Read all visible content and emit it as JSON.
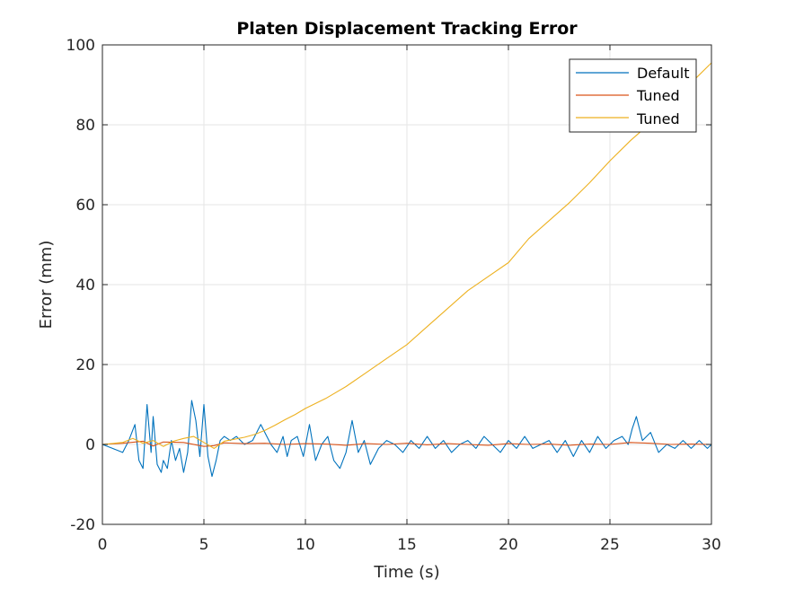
{
  "chart_data": {
    "type": "line",
    "title": "Platen Displacement Tracking Error",
    "xlabel": "Time (s)",
    "ylabel": "Error (mm)",
    "xlim": [
      0,
      30
    ],
    "ylim": [
      -20,
      100
    ],
    "xticks": [
      "0",
      "5",
      "10",
      "15",
      "20",
      "25",
      "30"
    ],
    "yticks": [
      "-20",
      "0",
      "20",
      "40",
      "60",
      "80",
      "100"
    ],
    "grid": true,
    "legend_position": "top-right",
    "series": [
      {
        "name": "Default",
        "color": "#0072BD",
        "x": [
          0,
          0.5,
          1,
          1.3,
          1.6,
          1.8,
          2.0,
          2.2,
          2.4,
          2.5,
          2.7,
          2.9,
          3.0,
          3.2,
          3.4,
          3.6,
          3.8,
          4.0,
          4.2,
          4.4,
          4.6,
          4.8,
          5.0,
          5.2,
          5.4,
          5.6,
          5.8,
          6.0,
          6.3,
          6.6,
          7.0,
          7.4,
          7.8,
          8.0,
          8.3,
          8.6,
          8.9,
          9.1,
          9.3,
          9.6,
          9.9,
          10.2,
          10.5,
          10.8,
          11.1,
          11.4,
          11.7,
          12.0,
          12.3,
          12.6,
          12.9,
          13.2,
          13.6,
          14.0,
          14.4,
          14.8,
          15.2,
          15.6,
          16.0,
          16.4,
          16.8,
          17.2,
          17.6,
          18.0,
          18.4,
          18.8,
          19.2,
          19.6,
          20.0,
          20.4,
          20.8,
          21.2,
          21.6,
          22.0,
          22.4,
          22.8,
          23.2,
          23.6,
          24.0,
          24.4,
          24.8,
          25.2,
          25.6,
          25.9,
          26.1,
          26.3,
          26.6,
          27.0,
          27.4,
          27.8,
          28.2,
          28.6,
          29.0,
          29.4,
          29.8,
          30.0
        ],
        "y": [
          0,
          -1,
          -2,
          1,
          5,
          -4,
          -6,
          10,
          -2,
          7,
          -5,
          -7,
          -4,
          -6,
          1,
          -4,
          -1,
          -7,
          -2,
          11,
          6,
          -3,
          10,
          -3,
          -8,
          -4,
          1,
          2,
          1,
          2,
          0,
          1,
          5,
          3,
          0,
          -2,
          2,
          -3,
          1,
          2,
          -3,
          5,
          -4,
          0,
          2,
          -4,
          -6,
          -2,
          6,
          -2,
          1,
          -5,
          -1,
          1,
          0,
          -2,
          1,
          -1,
          2,
          -1,
          1,
          -2,
          0,
          1,
          -1,
          2,
          0,
          -2,
          1,
          -1,
          2,
          -1,
          0,
          1,
          -2,
          1,
          -3,
          1,
          -2,
          2,
          -1,
          1,
          2,
          0,
          4,
          7,
          1,
          3,
          -2,
          0,
          -1,
          1,
          -1,
          1,
          -1,
          0
        ]
      },
      {
        "name": "Tuned",
        "color": "#D95319",
        "x": [
          0,
          1,
          2,
          2.5,
          3,
          4,
          5,
          5.5,
          6,
          7,
          8,
          9,
          10,
          11,
          12,
          13,
          14,
          15,
          16,
          17,
          18,
          19,
          20,
          21,
          22,
          23,
          24,
          25,
          26,
          27,
          28,
          29,
          30
        ],
        "y": [
          0,
          0.3,
          0.8,
          -0.4,
          0.6,
          0.5,
          -0.5,
          -0.3,
          0.4,
          0.2,
          0.3,
          0.0,
          0.2,
          0.1,
          -0.2,
          0.2,
          0.0,
          0.3,
          -0.1,
          0.2,
          0.0,
          -0.2,
          0.2,
          0.0,
          0.1,
          -0.2,
          0.1,
          0.0,
          0.5,
          0.3,
          0.0,
          0.1,
          0.0
        ]
      },
      {
        "name": "Tuned",
        "color": "#EDB120",
        "x": [
          0,
          1,
          1.5,
          2,
          2.5,
          3,
          3.5,
          4,
          4.5,
          5,
          5.5,
          6,
          6.5,
          7,
          7.5,
          8,
          8.5,
          9,
          9.5,
          10,
          11,
          12,
          13,
          14,
          15,
          16,
          17,
          18,
          19,
          20,
          21,
          22,
          23,
          24,
          25,
          26,
          27,
          28,
          29,
          30
        ],
        "y": [
          0,
          0.5,
          1.5,
          0.3,
          1.0,
          -0.5,
          0.8,
          1.5,
          2.0,
          0.5,
          -1.0,
          0.8,
          1.3,
          1.8,
          2.5,
          3.5,
          4.8,
          6.2,
          7.5,
          9,
          11.5,
          14.5,
          18,
          21.5,
          25,
          29.5,
          34,
          38.5,
          42,
          45.5,
          51.5,
          56,
          60.5,
          65.5,
          71,
          76,
          80.5,
          86,
          90.5,
          95.5
        ]
      }
    ]
  }
}
